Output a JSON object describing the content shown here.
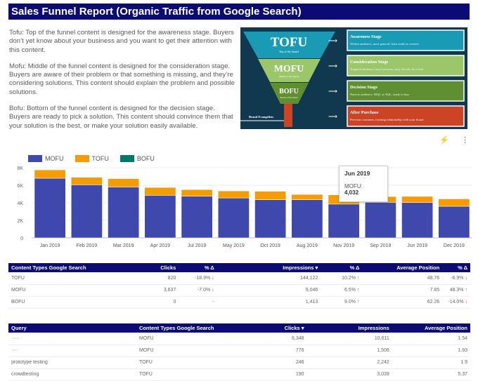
{
  "header": {
    "title": "Sales Funnel Report (Organic Traffic from Google Search)"
  },
  "intro": {
    "tofu": "Tofu: Top of the funnel content is designed for the awareness stage. Buyers don’t yet know about your business and you want to get their attention with this content.",
    "mofu": "Mofu: Middle of the funnel content is designed for the consideration stage. Buyers are aware of their problem or that something is missing, and they’re considering solutions. This content should explain the problem and possible solutions.",
    "bofu": "Bofu: Bottom of the funnel content is designed for the decision stage. Buyers are ready to pick a solution. This content should convince them that your solution is the best, or make your solution easily available."
  },
  "funnel": {
    "tofu": "TOFU",
    "tofu_sub": "Top of the funnel",
    "mofu": "MOFU",
    "mofu_sub": "Middle of the funnel",
    "bofu": "BOFU",
    "bofu_sub": "Bottom of the funnel",
    "evangelists": "Brand Evangelists",
    "stages": [
      {
        "title": "Awareness Stage",
        "desc": "Widest audience, most general, least ready to convert",
        "color": "#1a9bb5"
      },
      {
        "title": "Consideration Stage",
        "desc": "Targeted audience, buyer persona, may already be a lead",
        "color": "#9cc66a"
      },
      {
        "title": "Decision Stage",
        "desc": "Narrow audience, MQL or SQL, ready to buy",
        "color": "#5f8f30"
      },
      {
        "title": "After Purchase",
        "desc": "Previous customer, forming relationship with your brand",
        "color": "#cc4426"
      }
    ]
  },
  "toolbar": {
    "explore_icon": "sparkle-icon",
    "menu_icon": "more-vert-icon"
  },
  "chart_data": {
    "type": "bar",
    "stacked": true,
    "categories": [
      "Jan 2019",
      "Feb 2019",
      "Mar 2019",
      "Apr 2019",
      "Jul 2019",
      "May 2019",
      "Oct 2019",
      "Aug 2019",
      "Nov 2019",
      "Sep 2019",
      "Jun 2019",
      "Dec 2019"
    ],
    "series": [
      {
        "name": "MOFU",
        "color": "#3f48ad",
        "values": [
          6800,
          6050,
          5800,
          4850,
          4750,
          4550,
          4350,
          4350,
          3850,
          4050,
          4032,
          3600
        ]
      },
      {
        "name": "TOFU",
        "color": "#f59c00",
        "values": [
          950,
          850,
          950,
          900,
          750,
          800,
          950,
          600,
          1050,
          650,
          700,
          850
        ]
      },
      {
        "name": "BOFU",
        "color": "#00786a",
        "values": [
          20,
          20,
          20,
          20,
          20,
          20,
          20,
          20,
          20,
          20,
          20,
          20
        ]
      }
    ],
    "ylim": [
      0,
      8000
    ],
    "yticks": [
      "0",
      "2K",
      "4K",
      "6K",
      "8K"
    ],
    "grid": true,
    "legend": "top-left",
    "tooltip": {
      "title": "Jun 2019",
      "label": "MOFU:",
      "value": "4,032"
    }
  },
  "table1": {
    "headers": [
      "Content Types Google Search",
      "Clicks",
      "% Δ",
      "Impressions ▾",
      "% Δ",
      "Average Position",
      "% Δ"
    ],
    "rows": [
      [
        "TOFU",
        "820",
        "-18.9%",
        "144,122",
        "10.2%",
        "48.76",
        "-6.9%"
      ],
      [
        "MOFU",
        "3,637",
        "-7.0%",
        "9,046",
        "6.5%",
        "7.85",
        "48.3%"
      ],
      [
        "BOFU",
        "0",
        "-",
        "1,413",
        "9.0%",
        "62.26",
        "-14.0%"
      ]
    ],
    "arrows": [
      [
        "dn",
        "up",
        "dn"
      ],
      [
        "dn",
        "up",
        "up"
      ],
      [
        "",
        "up",
        "dn"
      ]
    ]
  },
  "table2": {
    "headers": [
      "Query",
      "Content Types Google Search",
      "Clicks ▾",
      "Impressions",
      "Average Position"
    ],
    "rows": [
      [
        "·····",
        "MOFU",
        "6,348",
        "10,611",
        "1.54"
      ],
      [
        "····",
        "MOFU",
        "776",
        "1,506",
        "1.93"
      ],
      [
        "prototype testing",
        "TOFU",
        "246",
        "2,242",
        "1.9"
      ],
      [
        "crowdtesting",
        "TOFU",
        "190",
        "3,039",
        "5.37"
      ]
    ]
  }
}
